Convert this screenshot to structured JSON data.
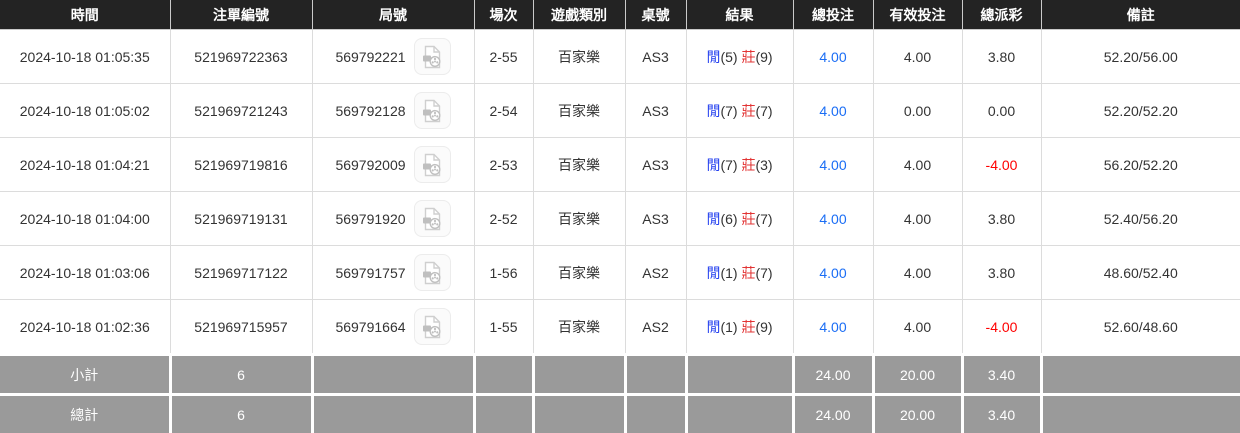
{
  "colors": {
    "header_dark": "#232323",
    "accent_blue": "#1a6df5",
    "player_blue": "#2440ef",
    "banker_red": "#e23434",
    "negative_red": "#ff0000",
    "footer_gray": "#9a9a9a"
  },
  "icons": {
    "round_video": "video-replay-icon"
  },
  "table": {
    "columns": [
      {
        "key": "time",
        "label": "時間"
      },
      {
        "key": "bet_id",
        "label": "注單編號"
      },
      {
        "key": "round_id",
        "label": "局號"
      },
      {
        "key": "session",
        "label": "場次"
      },
      {
        "key": "game_type",
        "label": "遊戲類別"
      },
      {
        "key": "table_no",
        "label": "桌號"
      },
      {
        "key": "result",
        "label": "結果"
      },
      {
        "key": "total_bet",
        "label": "總投注"
      },
      {
        "key": "valid_bet",
        "label": "有效投注"
      },
      {
        "key": "total_payout",
        "label": "總派彩"
      },
      {
        "key": "remark",
        "label": "備註"
      }
    ],
    "rows": [
      {
        "time": "2024-10-18 01:05:35",
        "bet_id": "521969722363",
        "round_id": "569792221",
        "session": "2-55",
        "game_type": "百家樂",
        "table_no": "AS3",
        "result": {
          "player_label": "閒",
          "player_score": "(5)",
          "banker_label": "莊",
          "banker_score": "(9)"
        },
        "total_bet": "4.00",
        "valid_bet": "4.00",
        "total_payout": "3.80",
        "remark": "52.20/56.00"
      },
      {
        "time": "2024-10-18 01:05:02",
        "bet_id": "521969721243",
        "round_id": "569792128",
        "session": "2-54",
        "game_type": "百家樂",
        "table_no": "AS3",
        "result": {
          "player_label": "閒",
          "player_score": "(7)",
          "banker_label": "莊",
          "banker_score": "(7)"
        },
        "total_bet": "4.00",
        "valid_bet": "0.00",
        "total_payout": "0.00",
        "remark": "52.20/52.20"
      },
      {
        "time": "2024-10-18 01:04:21",
        "bet_id": "521969719816",
        "round_id": "569792009",
        "session": "2-53",
        "game_type": "百家樂",
        "table_no": "AS3",
        "result": {
          "player_label": "閒",
          "player_score": "(7)",
          "banker_label": "莊",
          "banker_score": "(3)"
        },
        "total_bet": "4.00",
        "valid_bet": "4.00",
        "total_payout": "-4.00",
        "remark": "56.20/52.20"
      },
      {
        "time": "2024-10-18 01:04:00",
        "bet_id": "521969719131",
        "round_id": "569791920",
        "session": "2-52",
        "game_type": "百家樂",
        "table_no": "AS3",
        "result": {
          "player_label": "閒",
          "player_score": "(6)",
          "banker_label": "莊",
          "banker_score": "(7)"
        },
        "total_bet": "4.00",
        "valid_bet": "4.00",
        "total_payout": "3.80",
        "remark": "52.40/56.20"
      },
      {
        "time": "2024-10-18 01:03:06",
        "bet_id": "521969717122",
        "round_id": "569791757",
        "session": "1-56",
        "game_type": "百家樂",
        "table_no": "AS2",
        "result": {
          "player_label": "閒",
          "player_score": "(1)",
          "banker_label": "莊",
          "banker_score": "(7)"
        },
        "total_bet": "4.00",
        "valid_bet": "4.00",
        "total_payout": "3.80",
        "remark": "48.60/52.40"
      },
      {
        "time": "2024-10-18 01:02:36",
        "bet_id": "521969715957",
        "round_id": "569791664",
        "session": "1-55",
        "game_type": "百家樂",
        "table_no": "AS2",
        "result": {
          "player_label": "閒",
          "player_score": "(1)",
          "banker_label": "莊",
          "banker_score": "(9)"
        },
        "total_bet": "4.00",
        "valid_bet": "4.00",
        "total_payout": "-4.00",
        "remark": "52.60/48.60"
      }
    ],
    "footer": [
      {
        "label": "小計",
        "count": "6",
        "total_bet": "24.00",
        "valid_bet": "20.00",
        "total_payout": "3.40"
      },
      {
        "label": "總計",
        "count": "6",
        "total_bet": "24.00",
        "valid_bet": "20.00",
        "total_payout": "3.40"
      }
    ]
  }
}
